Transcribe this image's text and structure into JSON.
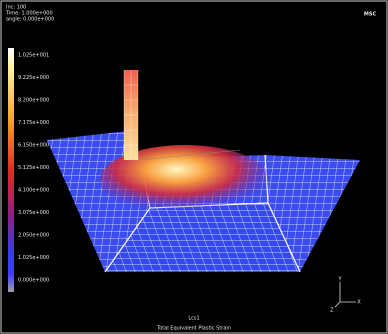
{
  "header": {
    "lines": [
      "Inc: 100",
      "Time: 1.000e+000",
      "angle: 0.000e+000"
    ],
    "logo": "MSC"
  },
  "legend": {
    "labels": [
      "1.025e+001",
      "9.225e+000",
      "8.200e+000",
      "7.175e+000",
      "6.150e+000",
      "5.125e+000",
      "4.100e+000",
      "3.075e+000",
      "2.050e+000",
      "1.025e+000",
      "0.000e+000"
    ]
  },
  "footer": {
    "case": "Lcs1",
    "quantity": "Total Equivalent Plastic Strain"
  },
  "triad": {
    "axes": [
      "Y",
      "Z",
      "X"
    ]
  }
}
